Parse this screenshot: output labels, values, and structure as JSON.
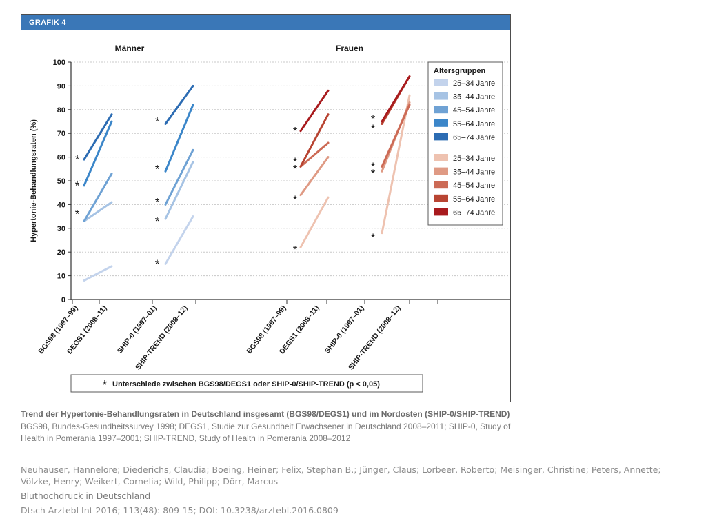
{
  "figure": {
    "header": "GRAFIK 4",
    "panel_titles": [
      "Männer",
      "Frauen"
    ],
    "note_star": "*",
    "note_text": "Unterschiede zwischen BGS98/DEGS1 oder SHIP-0/SHIP-TREND (p < 0,05)"
  },
  "chart_data": {
    "type": "line",
    "ylabel": "Hypertonie-Behandlungsraten (%)",
    "ylim": [
      0,
      100
    ],
    "yticks": [
      0,
      10,
      20,
      30,
      40,
      50,
      60,
      70,
      80,
      90,
      100
    ],
    "categories": [
      "BGS98 (1997–99)",
      "DEGS1 (2008–11)",
      "SHIP-0 (1997–01)",
      "SHIP-TREND (2008–12)",
      "BGS98 (1997–99)",
      "DEGS1 (2008–11)",
      "SHIP-0 (1997–01)",
      "SHIP-TREND (2008–12)"
    ],
    "legend_title": "Altersgruppen",
    "legend_position": "top-right",
    "series": [
      {
        "name": "25–34 Jahre",
        "group": "Männer",
        "color": "#c3d3ec",
        "bgs_degs": [
          8,
          14
        ],
        "ship": [
          15,
          35
        ],
        "star_bgs": false,
        "star_ship": 16
      },
      {
        "name": "35–44 Jahre",
        "group": "Männer",
        "color": "#a6c3e4",
        "bgs_degs": [
          33,
          41
        ],
        "ship": [
          34,
          58
        ],
        "star_bgs": false,
        "star_ship": 34
      },
      {
        "name": "45–54 Jahre",
        "group": "Männer",
        "color": "#6fa2d4",
        "bgs_degs": [
          33,
          53
        ],
        "ship": [
          40,
          63
        ],
        "star_bgs": 37,
        "star_ship": 42
      },
      {
        "name": "55–64 Jahre",
        "group": "Männer",
        "color": "#3b86c9",
        "bgs_degs": [
          48,
          75
        ],
        "ship": [
          54,
          82
        ],
        "star_bgs": 49,
        "star_ship": 56
      },
      {
        "name": "65–74 Jahre",
        "group": "Männer",
        "color": "#2c6cb3",
        "bgs_degs": [
          59,
          78
        ],
        "ship": [
          74,
          90
        ],
        "star_bgs": 60,
        "star_ship": 76
      },
      {
        "name": "25–34 Jahre",
        "group": "Frauen",
        "color": "#eec2b0",
        "bgs_degs": [
          22,
          43
        ],
        "ship": [
          28,
          86
        ],
        "star_bgs": 22,
        "star_ship": 27
      },
      {
        "name": "35–44 Jahre",
        "group": "Frauen",
        "color": "#df9a84",
        "bgs_degs": [
          44,
          60
        ],
        "ship": [
          54,
          83
        ],
        "star_bgs": 43,
        "star_ship": 54
      },
      {
        "name": "45–54 Jahre",
        "group": "Frauen",
        "color": "#cc6a55",
        "bgs_degs": [
          56,
          66
        ],
        "ship": [
          56,
          82
        ],
        "star_bgs": 56,
        "star_ship": 57
      },
      {
        "name": "55–64 Jahre",
        "group": "Frauen",
        "color": "#b84432",
        "bgs_degs": [
          56,
          78
        ],
        "ship": [
          74,
          94
        ],
        "star_bgs": 59,
        "star_ship": 73
      },
      {
        "name": "65–74 Jahre",
        "group": "Frauen",
        "color": "#a81a1d",
        "bgs_degs": [
          71,
          88
        ],
        "ship": [
          75,
          94
        ],
        "star_bgs": 72,
        "star_ship": 77
      }
    ]
  },
  "caption": {
    "title": "Trend der Hypertonie-Behandlungsraten in Deutschland insgesamt (BGS98/DEGS1) und im Nordosten (SHIP-0/SHIP-TREND)",
    "body": "BGS98, Bundes-Gesundheitssurvey 1998; DEGS1, Studie zur Gesundheit Erwachsener in Deutschland 2008–2011; SHIP-0, Study of Health in Pomerania 1997–2001; SHIP-TREND, Study of Health in Pomerania 2008–2012"
  },
  "reference": {
    "authors": "Neuhauser, Hannelore; Diederichs, Claudia; Boeing, Heiner; Felix, Stephan B.; Jünger, Claus; Lorbeer, Roberto; Meisinger, Christine; Peters, Annette; Völzke, Henry; Weikert, Cornelia; Wild, Philipp; Dörr, Marcus",
    "title": "Bluthochdruck in Deutschland",
    "source": "Dtsch Arztebl Int 2016; 113(48): 809-15; DOI: 10.3238/arztebl.2016.0809"
  }
}
